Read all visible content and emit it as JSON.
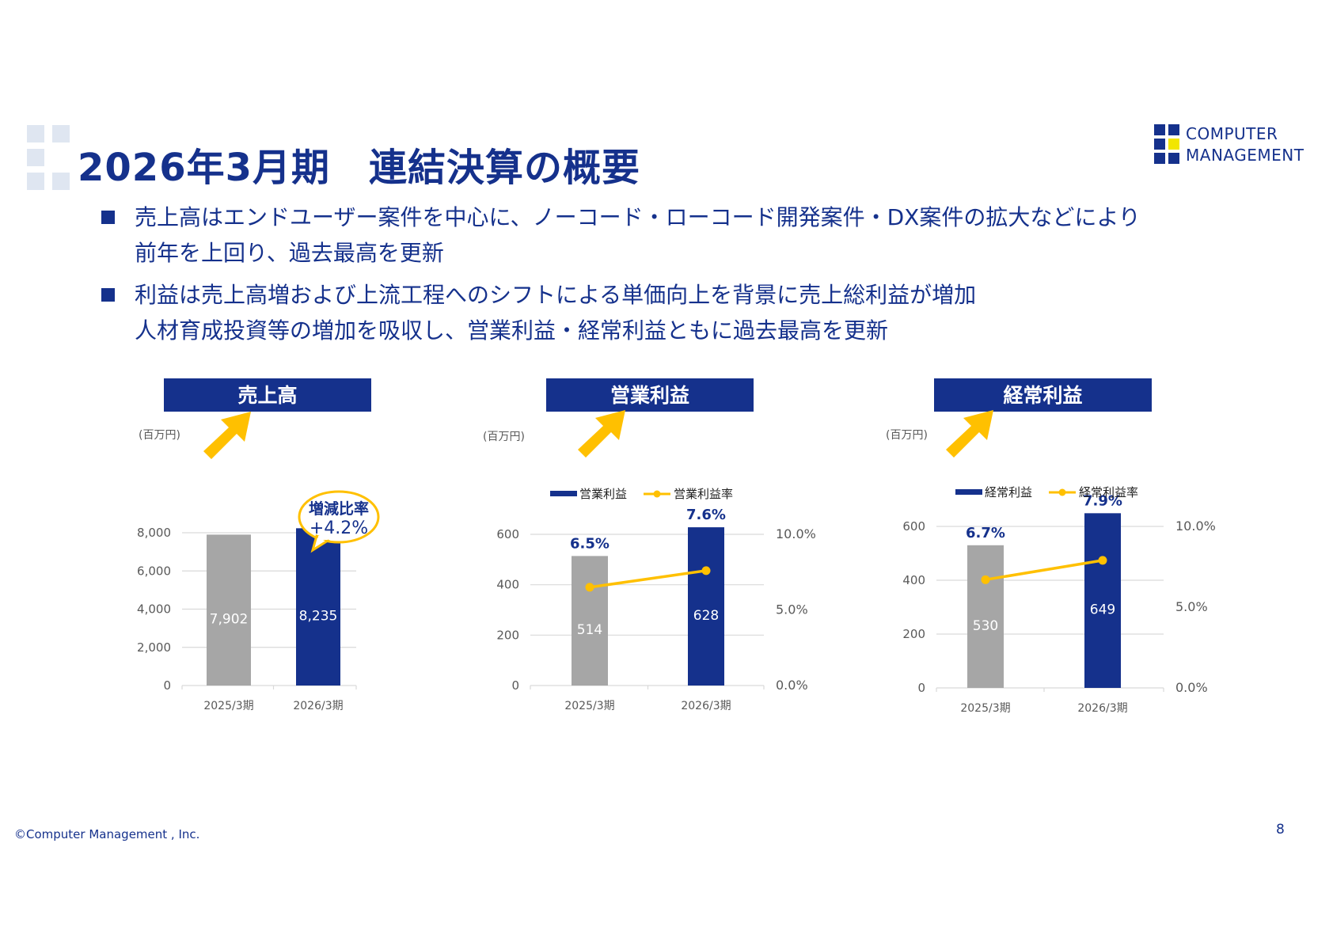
{
  "header": {
    "title": "2026年3月期　連結決算の概要",
    "logo_line1": "COMPUTER",
    "logo_line2": "MANAGEMENT"
  },
  "bullets": [
    {
      "lines": [
        "売上高はエンドユーザー案件を中心に、ノーコード・ローコード開発案件・DX案件の拡大などにより",
        "前年を上回り、過去最高を更新"
      ]
    },
    {
      "lines": [
        "利益は売上高増および上流工程へのシフトによる単価向上を背景に売上総利益が増加",
        "人材育成投資等の増加を吸収し、営業利益・経常利益ともに過去最高を更新"
      ]
    }
  ],
  "colors": {
    "navy": "#15318c",
    "gray": "#a6a6a6",
    "accent": "#ffc000",
    "grid": "#d9d9d9",
    "axis_text": "#595959"
  },
  "chart_data": [
    {
      "type": "bar",
      "title": "売上高",
      "unit": "(百万円)",
      "categories": [
        "2025/3期",
        "2026/3期"
      ],
      "series": [
        {
          "values": [
            7902,
            8235
          ]
        }
      ],
      "value_labels": [
        "7,902",
        "8,235"
      ],
      "ylim": [
        0,
        8000
      ],
      "yticks": [
        0,
        2000,
        4000,
        6000,
        8000
      ],
      "ytick_labels": [
        "0",
        "2,000",
        "4,000",
        "6,000",
        "8,000"
      ],
      "grid": true,
      "callout": {
        "line1": "増減比率",
        "line2": "+4.2%"
      }
    },
    {
      "type": "bar",
      "title": "営業利益",
      "unit": "(百万円)",
      "categories": [
        "2025/3期",
        "2026/3期"
      ],
      "series": [
        {
          "name": "営業利益",
          "values": [
            514,
            628
          ],
          "axis": "left"
        },
        {
          "name": "営業利益率",
          "type": "line",
          "values": [
            6.5,
            7.6
          ],
          "axis": "right"
        }
      ],
      "value_labels": [
        "514",
        "628"
      ],
      "rate_labels": [
        "6.5%",
        "7.6%"
      ],
      "ylim": [
        0,
        600
      ],
      "yticks": [
        0,
        200,
        400,
        600
      ],
      "ytick_labels": [
        "0",
        "200",
        "400",
        "600"
      ],
      "y2lim": [
        0,
        10
      ],
      "y2ticks": [
        0,
        5,
        10
      ],
      "y2tick_labels": [
        "0.0%",
        "5.0%",
        "10.0%"
      ],
      "grid": true,
      "legend": "top"
    },
    {
      "type": "bar",
      "title": "経常利益",
      "unit": "(百万円)",
      "categories": [
        "2025/3期",
        "2026/3期"
      ],
      "series": [
        {
          "name": "経常利益",
          "values": [
            530,
            649
          ],
          "axis": "left"
        },
        {
          "name": "経常利益率",
          "type": "line",
          "values": [
            6.7,
            7.9
          ],
          "axis": "right"
        }
      ],
      "value_labels": [
        "530",
        "649"
      ],
      "rate_labels": [
        "6.7%",
        "7.9%"
      ],
      "ylim": [
        0,
        600
      ],
      "yticks": [
        0,
        200,
        400,
        600
      ],
      "ytick_labels": [
        "0",
        "200",
        "400",
        "600"
      ],
      "y2lim": [
        0,
        10
      ],
      "y2ticks": [
        0,
        5,
        10
      ],
      "y2tick_labels": [
        "0.0%",
        "5.0%",
        "10.0%"
      ],
      "grid": true,
      "legend": "top"
    }
  ],
  "footer": {
    "copyright": "©Computer Management , Inc.",
    "page_number": "8"
  }
}
